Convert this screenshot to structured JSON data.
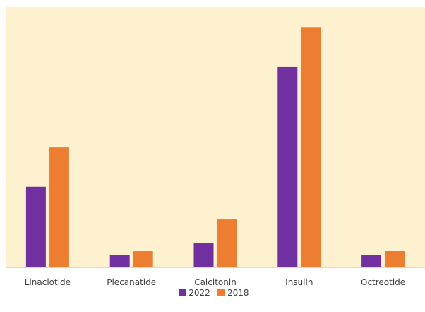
{
  "chart_data": {
    "type": "bar",
    "categories": [
      "Linaclotide",
      "Plecanatide",
      "Calcitonin",
      "Insulin",
      "Octreotide"
    ],
    "series": [
      {
        "name": "2022",
        "values": [
          20.0,
          3.0,
          6.0,
          50.0,
          3.0
        ]
      },
      {
        "name": "2018",
        "values": [
          30.0,
          4.0,
          12.0,
          60.0,
          4.0
        ]
      }
    ],
    "ylim": [
      0,
      65
    ],
    "grid": false,
    "legend": "bottom",
    "background_color": "#fdf1d0",
    "colors": {
      "2022": "#7030a0",
      "2018": "#ed7d31"
    }
  }
}
